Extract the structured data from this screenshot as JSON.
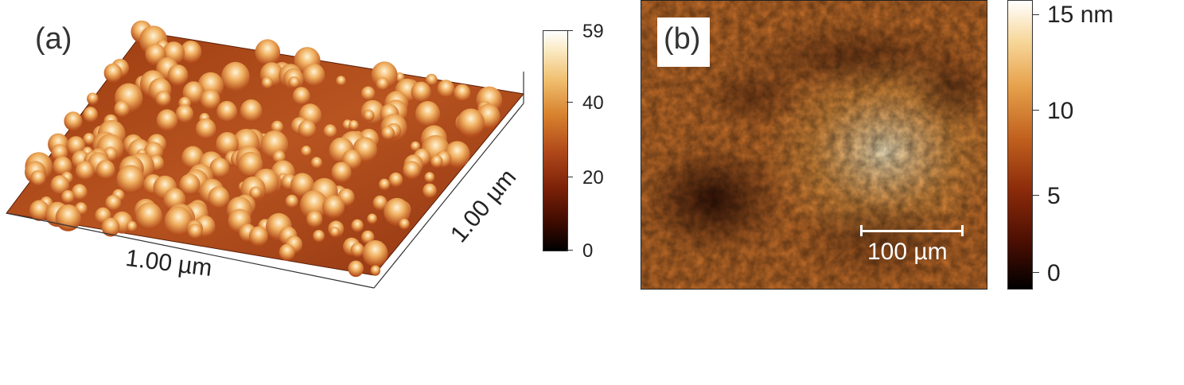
{
  "panel_a": {
    "label": "(a)",
    "x_axis_label": "1.00 µm",
    "y_axis_label": "1.00 µm",
    "colorbar": {
      "ticks": [
        "59",
        "40",
        "20",
        "0"
      ]
    }
  },
  "panel_b": {
    "label": "(b)",
    "scale_bar": "100 µm",
    "colorbar": {
      "ticks": [
        "15 nm",
        "10",
        "5",
        "0"
      ]
    }
  },
  "colors": {
    "dark": "#1a0400",
    "mid": "#b0481a",
    "light": "#f0c070",
    "highlight": "#ffffff"
  }
}
